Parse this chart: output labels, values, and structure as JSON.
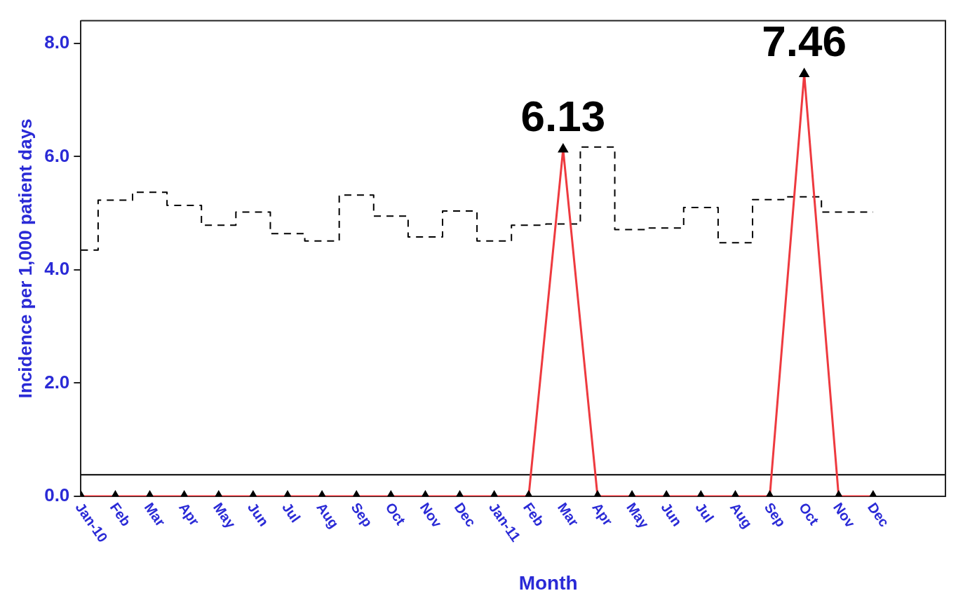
{
  "chart_data": {
    "type": "line",
    "xlabel": "Month",
    "ylabel": "Incidence per 1,000 patient days",
    "categories": [
      "Jan-10",
      "Feb",
      "Mar",
      "Apr",
      "May",
      "Jun",
      "Jul",
      "Aug",
      "Sep",
      "Oct",
      "Nov",
      "Dec",
      "Jan-11",
      "Feb",
      "Mar",
      "Apr",
      "May",
      "Jun",
      "Jul",
      "Aug",
      "Sep",
      "Oct",
      "Nov",
      "Dec"
    ],
    "series": [
      {
        "type": "step",
        "color": "#000000",
        "line_style": "dashed",
        "marker": "none",
        "values": [
          4.35,
          5.23,
          5.37,
          5.14,
          4.79,
          5.02,
          4.64,
          4.51,
          5.32,
          4.95,
          4.58,
          5.04,
          4.51,
          4.79,
          4.81,
          6.17,
          4.71,
          4.74,
          5.1,
          4.48,
          5.24,
          5.29,
          5.02,
          5.02
        ]
      },
      {
        "color": "#ee3a3f",
        "marker": "triangle",
        "values": [
          0,
          0,
          0,
          0,
          0,
          0,
          0,
          0,
          0,
          0,
          0,
          0,
          0,
          0,
          6.13,
          0,
          0,
          0,
          0,
          0,
          0,
          7.46,
          0,
          0
        ],
        "value_labels": [
          null,
          null,
          null,
          null,
          null,
          null,
          null,
          null,
          null,
          null,
          null,
          null,
          null,
          null,
          "6.13",
          null,
          null,
          null,
          null,
          null,
          null,
          "7.46",
          null,
          null
        ]
      }
    ],
    "ref_lines": [
      {
        "axis": "y",
        "value": 0.38,
        "color": "#000000"
      }
    ],
    "ylim": [
      0,
      8.4
    ],
    "yticks": [
      {
        "value": 0,
        "label": "0.0"
      },
      {
        "value": 2,
        "label": "2.0"
      },
      {
        "value": 4,
        "label": "4.0"
      },
      {
        "value": 6,
        "label": "6.0"
      },
      {
        "value": 8,
        "label": "8.0"
      }
    ],
    "grid": false,
    "legend": false
  }
}
